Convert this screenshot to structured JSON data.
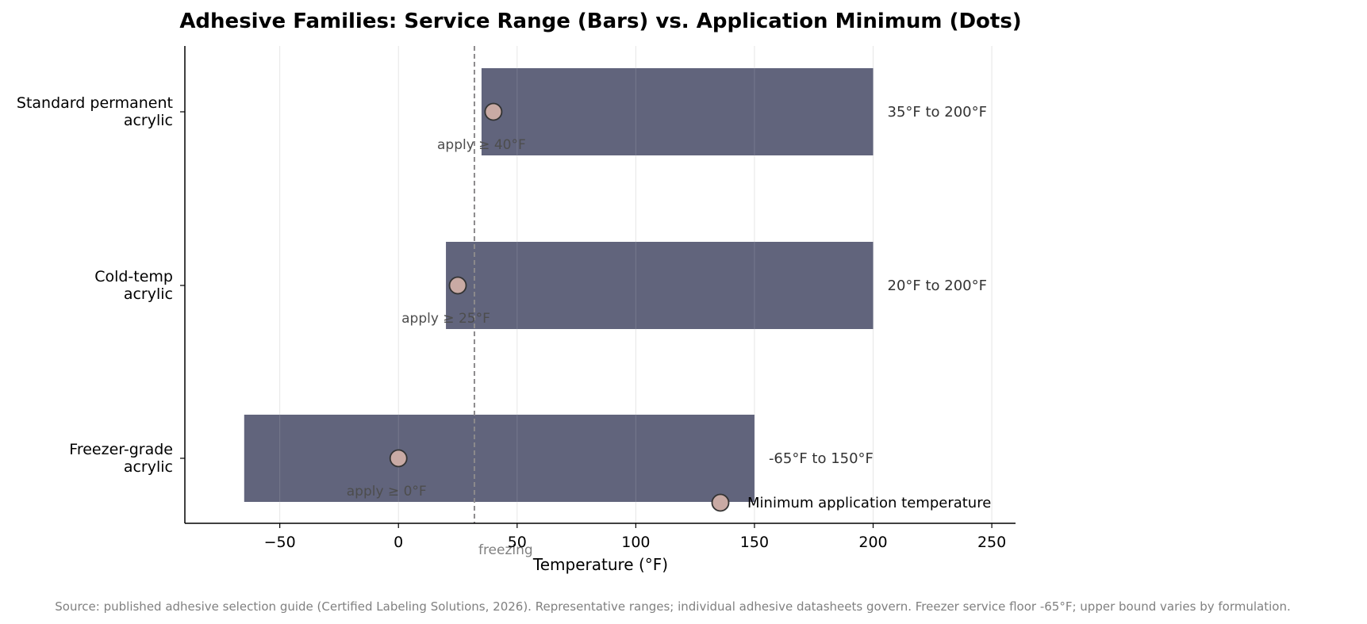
{
  "chart_data": {
    "type": "bar",
    "orientation": "horizontal",
    "title": "Adhesive Families: Service Range (Bars) vs. Application Minimum (Dots)",
    "xlabel": "Temperature (°F)",
    "ylabel": "",
    "xlim": [
      -90,
      260
    ],
    "xticks": [
      -50,
      0,
      50,
      100,
      150,
      200,
      250
    ],
    "xtick_labels": [
      "−50",
      "0",
      "50",
      "100",
      "150",
      "200",
      "250"
    ],
    "grid": "vertical",
    "categories": [
      {
        "lines": [
          "Standard permanent",
          "acrylic"
        ]
      },
      {
        "lines": [
          "Cold-temp",
          "acrylic"
        ]
      },
      {
        "lines": [
          "Freezer-grade",
          "acrylic"
        ]
      }
    ],
    "ranges": [
      {
        "min": 35,
        "max": 200,
        "label": "35°F to 200°F"
      },
      {
        "min": 20,
        "max": 200,
        "label": "20°F to 200°F"
      },
      {
        "min": -65,
        "max": 150,
        "label": "-65°F to 150°F"
      }
    ],
    "application_minimum": {
      "values": [
        40,
        25,
        0
      ],
      "labels": [
        "apply ≥ 40°F",
        "apply ≥ 25°F",
        "apply ≥ 0°F"
      ]
    },
    "reference_line": {
      "x": 32,
      "label": "freezing"
    },
    "legend": {
      "entries": [
        "Minimum application temperature"
      ],
      "placement": "lower-right"
    },
    "colors": {
      "bar": "#5c5f78",
      "dot": "#c9aaa4",
      "dot_edge": "#333333",
      "reference_line": "#8c8a8c",
      "grid": "#e6e6e6"
    },
    "source": "Source: published adhesive selection guide (Certified Labeling Solutions, 2026). Representative ranges; individual adhesive datasheets govern. Freezer service floor -65°F; upper bound varies by formulation."
  }
}
